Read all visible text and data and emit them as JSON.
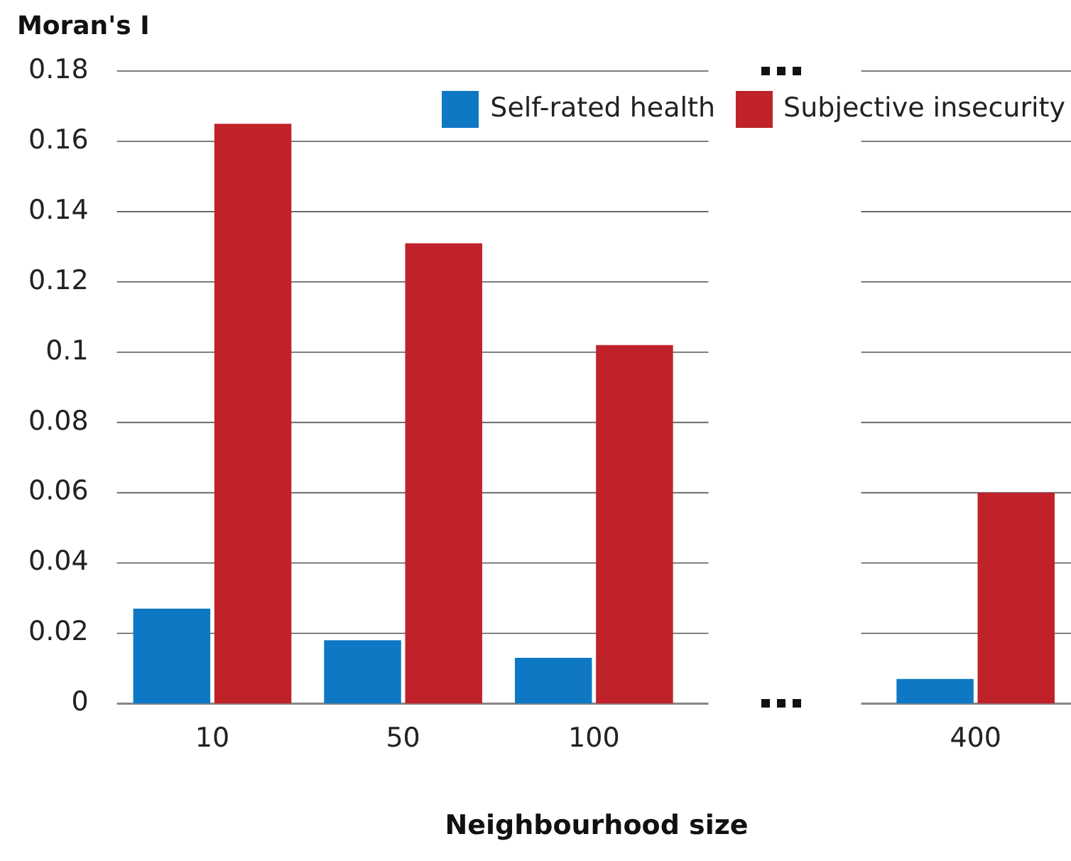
{
  "chart_data": {
    "type": "bar",
    "ylabel": "Moran's I",
    "xlabel": "Neighbourhood size",
    "categories": [
      "10",
      "50",
      "100",
      null,
      "400"
    ],
    "series": [
      {
        "name": "Self-rated health",
        "color": "#0e78c4",
        "values": [
          0.027,
          0.018,
          0.013,
          null,
          0.007
        ]
      },
      {
        "name": "Subjective insecurity",
        "color": "#c0222a",
        "values": [
          0.165,
          0.131,
          0.102,
          null,
          0.06
        ]
      }
    ],
    "ylim": [
      0,
      0.18
    ],
    "yticks": [
      0,
      0.02,
      0.04,
      0.06,
      0.08,
      0.1,
      0.12,
      0.14,
      0.16,
      0.18
    ],
    "grid": "y",
    "legend": "top right"
  }
}
